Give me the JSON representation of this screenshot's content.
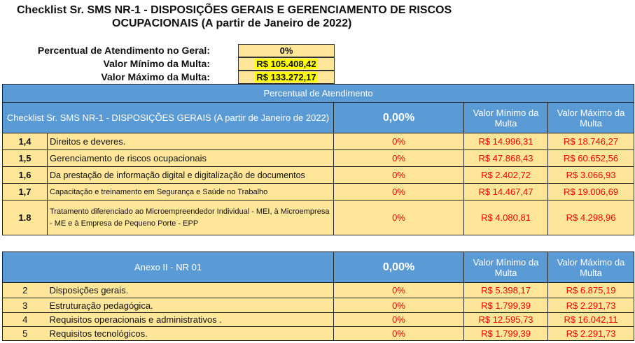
{
  "title": {
    "line1": "Checklist Sr. SMS NR-1 - DISPOSIÇÕES GERAIS E GERENCIAMENTO DE RISCOS",
    "line2": "OCUPACIONAIS (A partir de Janeiro de 2022)"
  },
  "summary": [
    {
      "label": "Percentual de Atendimento no Geral:",
      "value": "0%"
    },
    {
      "label": "Valor Mínimo da Multa:",
      "value": "R$ 105.408,42"
    },
    {
      "label": "Valor Máximo da Multa:",
      "value": "R$ 133.272,17"
    }
  ],
  "table1": {
    "banner": "Percentual de Atendimento",
    "header": {
      "section": "Checklist Sr. SMS NR-1 - DISPOSIÇÕES GERAIS (A partir de Janeiro de 2022)",
      "percent": "0,00%",
      "min": "Valor Mínimo da Multa",
      "max": "Valor Máximo da Multa"
    },
    "rows": [
      {
        "num": "1,4",
        "desc": "Direitos e deveres.",
        "pct": "0%",
        "min": "R$ 14.996,31",
        "max": "R$ 18.746,27"
      },
      {
        "num": "1,5",
        "desc": "Gerenciamento de riscos ocupacionais",
        "pct": "0%",
        "min": "R$ 47.868,43",
        "max": "R$ 60.652,56"
      },
      {
        "num": "1,6",
        "desc": "Da prestação de informação digital e digitalização de documentos",
        "pct": "0%",
        "min": "R$ 2.402,72",
        "max": "R$ 3.066,93"
      },
      {
        "num": "1,7",
        "desc": "Capacitação e treinamento em Segurança e Saúde no Trabalho",
        "pct": "0%",
        "min": "R$ 14.467,47",
        "max": "R$ 19.006,69"
      },
      {
        "num": "1.8",
        "desc": "Tratamento diferenciado ao Microempreendedor Individual - MEI, à Microempresa - ME e à Empresa de Pequeno Porte - EPP",
        "pct": "0%",
        "min": "R$ 4.080,81",
        "max": "R$ 4.298,96"
      }
    ]
  },
  "table2": {
    "header": {
      "section": "Anexo II - NR 01",
      "percent": "0,00%",
      "min": "Valor Mínimo da Multa",
      "max": "Valor Máximo da Multa"
    },
    "rows": [
      {
        "num": "2",
        "desc": "Disposições gerais.",
        "pct": "0%",
        "min": "R$ 5.398,17",
        "max": "R$ 6.875,19"
      },
      {
        "num": "3",
        "desc": "Estruturação pedagógica.",
        "pct": "0%",
        "min": "R$ 1.799,39",
        "max": "R$ 2.291,73"
      },
      {
        "num": "4",
        "desc": "Requisitos operacionais e administrativos .",
        "pct": "0%",
        "min": "R$ 12.595,73",
        "max": "R$ 16.042,11"
      },
      {
        "num": "5",
        "desc": "Requisitos tecnológicos.",
        "pct": "0%",
        "min": "R$ 1.799,39",
        "max": "R$ 2.291,73"
      }
    ]
  }
}
